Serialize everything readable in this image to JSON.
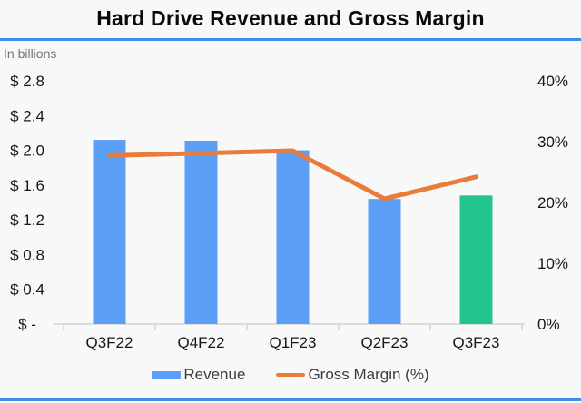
{
  "page": {
    "title": "Hard Drive Revenue and Gross Margin",
    "subtitle": "In billions"
  },
  "legend": [
    {
      "label": "Revenue",
      "swatch": "bar"
    },
    {
      "label": "Gross Margin (%)",
      "swatch": "line"
    }
  ],
  "colors": {
    "bar_default": "#5B9EF5",
    "bar_highlight": "#21C38E",
    "line": "#E87D3B",
    "accent_rule": "#3D8FEA",
    "axis_line": "#DCDCDC",
    "text_primary": "#161616",
    "text_muted": "#757575"
  },
  "chart_data": {
    "type": "bar",
    "subtype": "combo-bar-line-dual-axis",
    "title": "Hard Drive Revenue and Gross Margin",
    "categories": [
      "Q3F22",
      "Q4F22",
      "Q1F23",
      "Q2F23",
      "Q3F23"
    ],
    "series": [
      {
        "name": "Revenue",
        "type": "bar",
        "axis": "left",
        "unit": "USD billions",
        "values": [
          2.12,
          2.11,
          2.0,
          1.44,
          1.48
        ],
        "colors": [
          "#5B9EF5",
          "#5B9EF5",
          "#5B9EF5",
          "#5B9EF5",
          "#21C38E"
        ]
      },
      {
        "name": "Gross Margin (%)",
        "type": "line",
        "axis": "right",
        "unit": "percent",
        "values": [
          27.7,
          28.1,
          28.5,
          20.6,
          24.2
        ]
      }
    ],
    "left_axis": {
      "label": "In billions",
      "min": 0,
      "max": 2.8,
      "ticks": [
        "$ 2.8",
        "$ 2.4",
        "$ 2.0",
        "$ 1.6",
        "$ 1.2",
        "$ 0.8",
        "$ 0.4",
        "$ -"
      ]
    },
    "right_axis": {
      "min": 0,
      "max": 40,
      "ticks": [
        "40%",
        "30%",
        "20%",
        "10%",
        "0%"
      ]
    },
    "grid": false,
    "legend_position": "bottom"
  }
}
